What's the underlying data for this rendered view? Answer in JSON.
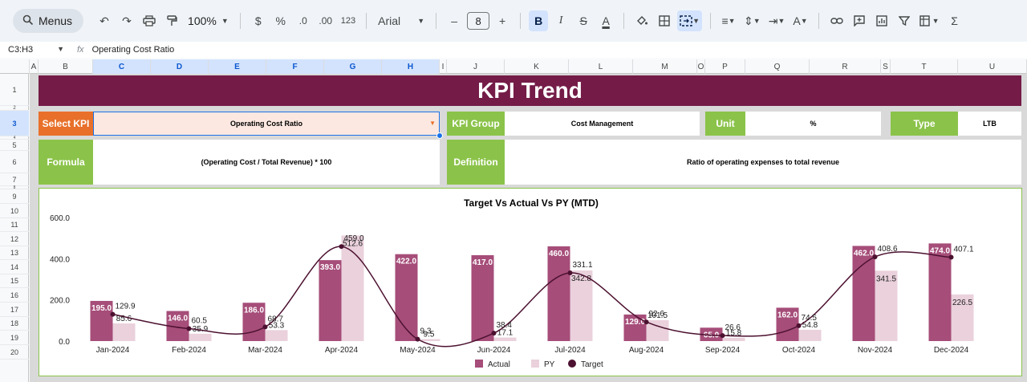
{
  "toolbar": {
    "menus_label": "Menus",
    "zoom": "100%",
    "currency": "$",
    "percent": "%",
    "dec_decrease": ".0",
    "dec_increase": ".00",
    "number_format": "123",
    "font": "Arial",
    "font_size": "8",
    "minus": "–",
    "plus": "+",
    "bold": "B",
    "italic": "I",
    "strike": "S",
    "text_color": "A",
    "sum": "Σ"
  },
  "formula_bar": {
    "cell_ref": "C3:H3",
    "fx": "fx",
    "content": "Operating Cost Ratio"
  },
  "columns": [
    "A",
    "B",
    "C",
    "D",
    "E",
    "F",
    "G",
    "H",
    "I",
    "J",
    "K",
    "L",
    "M",
    "O",
    "P",
    "Q",
    "R",
    "S",
    "T",
    "U"
  ],
  "rows": [
    "1",
    "2",
    "3",
    "4",
    "5",
    "6",
    "7",
    "8",
    "9",
    "10",
    "11",
    "12",
    "13",
    "14",
    "15",
    "16",
    "17",
    "18",
    "19",
    "20"
  ],
  "dashboard": {
    "title": "KPI Trend",
    "select_kpi_label": "Select KPI",
    "select_kpi_value": "Operating Cost Ratio",
    "kpi_group_label": "KPI Group",
    "kpi_group_value": "Cost Management",
    "unit_label": "Unit",
    "unit_value": "%",
    "type_label": "Type",
    "type_value": "LTB",
    "formula_label": "Formula",
    "formula_value": "(Operating Cost / Total Revenue) * 100",
    "definition_label": "Definition",
    "definition_value": "Ratio of operating expenses to total revenue"
  },
  "colors": {
    "banner": "#741b47",
    "actual": "#a64d79",
    "py": "#ead1dc",
    "target": "#4c1130",
    "label_green": "#8bc34a",
    "label_orange": "#e8702a"
  },
  "chart_data": {
    "type": "bar",
    "title": "Target Vs Actual Vs PY (MTD)",
    "categories": [
      "Jan-2024",
      "Feb-2024",
      "Mar-2024",
      "Apr-2024",
      "May-2024",
      "Jun-2024",
      "Jul-2024",
      "Aug-2024",
      "Sep-2024",
      "Oct-2024",
      "Nov-2024",
      "Dec-2024"
    ],
    "series": [
      {
        "name": "Actual",
        "type": "bar",
        "values": [
          195.0,
          146.0,
          186.0,
          393.0,
          422.0,
          417.0,
          460.0,
          129.0,
          65.0,
          162.0,
          462.0,
          474.0
        ]
      },
      {
        "name": "PY",
        "type": "bar",
        "values": [
          85.6,
          35.9,
          53.3,
          512.6,
          9.5,
          17.1,
          342.8,
          101.5,
          15.8,
          54.8,
          341.5,
          226.5
        ]
      },
      {
        "name": "Target",
        "type": "line",
        "values": [
          129.9,
          60.5,
          68.7,
          459.0,
          9.3,
          38.4,
          331.1,
          92.6,
          26.6,
          74.5,
          408.6,
          407.1
        ]
      }
    ],
    "y_ticks": [
      "600.0",
      "400.0",
      "200.0",
      "0.0"
    ],
    "ylim": [
      0,
      600
    ],
    "legend_position": "bottom",
    "grid": false
  }
}
